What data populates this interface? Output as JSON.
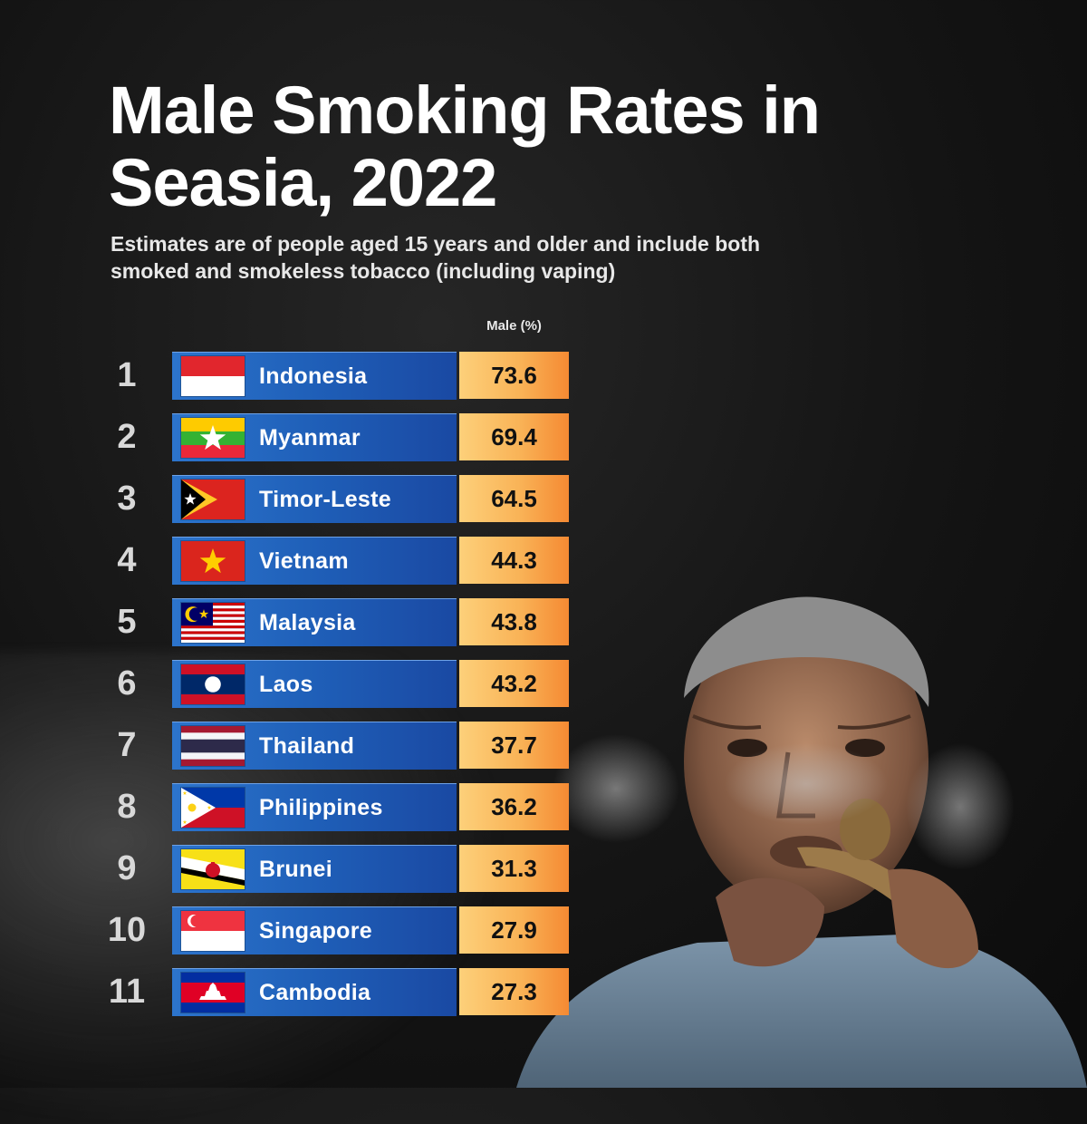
{
  "chart_data": {
    "type": "table",
    "title": "Male Smoking Rates in Seasia, 2022",
    "subtitle": "Estimates are of people aged 15 years and older and include both smoked and smokeless tobacco (including vaping)",
    "value_header": "Male (%)",
    "rows": [
      {
        "rank": "1",
        "country": "Indonesia",
        "value": "73.6",
        "flag": "indonesia-flag"
      },
      {
        "rank": "2",
        "country": "Myanmar",
        "value": "69.4",
        "flag": "myanmar-flag"
      },
      {
        "rank": "3",
        "country": "Timor-Leste",
        "value": "64.5",
        "flag": "timor-leste-flag"
      },
      {
        "rank": "4",
        "country": "Vietnam",
        "value": "44.3",
        "flag": "vietnam-flag"
      },
      {
        "rank": "5",
        "country": "Malaysia",
        "value": "43.8",
        "flag": "malaysia-flag"
      },
      {
        "rank": "6",
        "country": "Laos",
        "value": "43.2",
        "flag": "laos-flag"
      },
      {
        "rank": "7",
        "country": "Thailand",
        "value": "37.7",
        "flag": "thailand-flag"
      },
      {
        "rank": "8",
        "country": "Philippines",
        "value": "36.2",
        "flag": "philippines-flag"
      },
      {
        "rank": "9",
        "country": "Brunei",
        "value": "31.3",
        "flag": "brunei-flag"
      },
      {
        "rank": "10",
        "country": "Singapore",
        "value": "27.9",
        "flag": "singapore-flag"
      },
      {
        "rank": "11",
        "country": "Cambodia",
        "value": "27.3",
        "flag": "cambodia-flag"
      }
    ]
  },
  "colors": {
    "background": "#141414",
    "bar_blue": "#1f5fb8",
    "value_orange": "#f9b357",
    "rank_gray": "#d8d8d8"
  },
  "photo": "elderly-man-smoking-pipe"
}
